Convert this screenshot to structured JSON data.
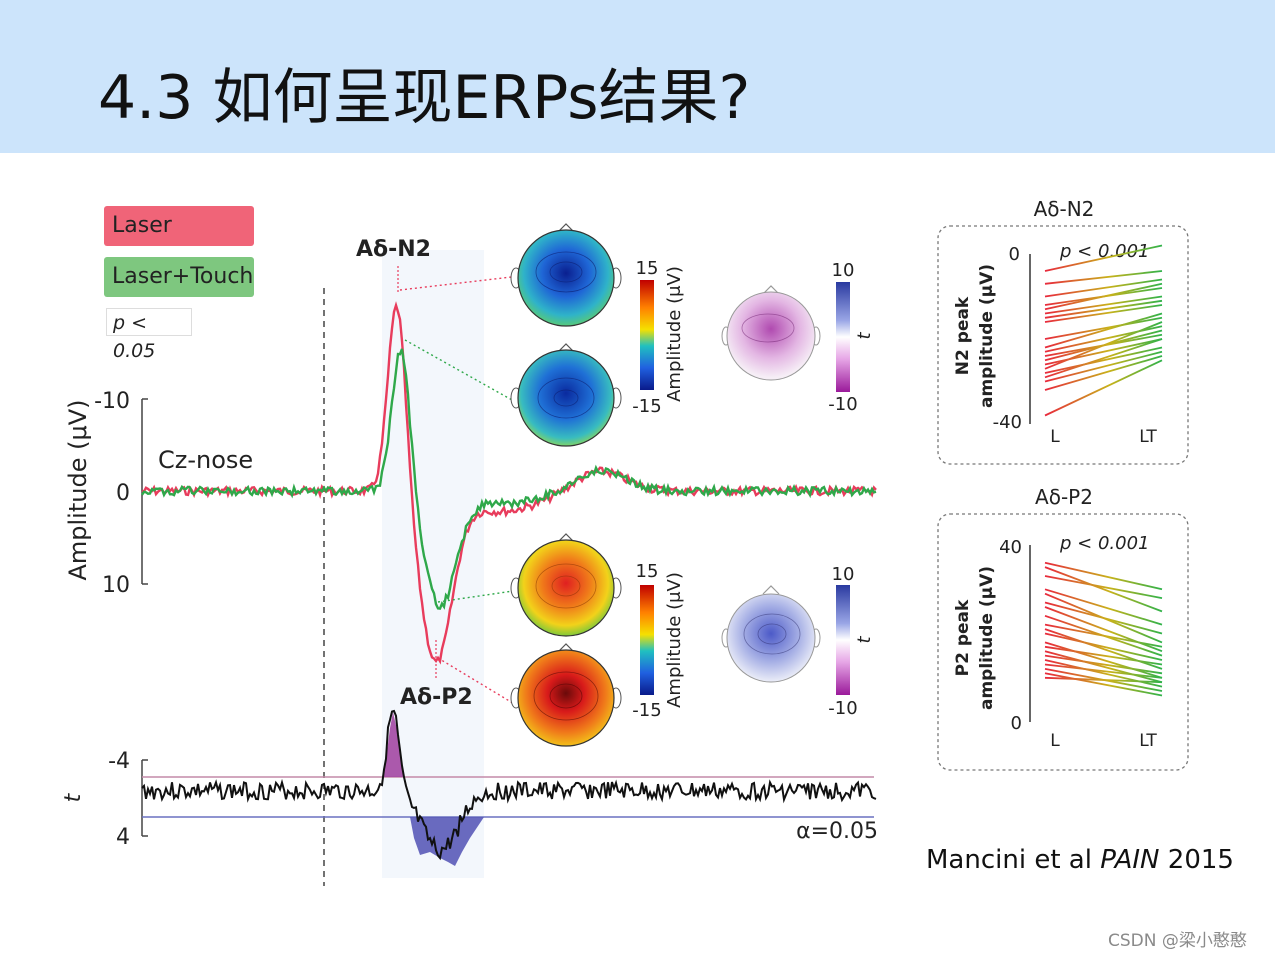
{
  "slide": {
    "title": "4.3 如何呈现ERPs结果?",
    "citation_pre": "Mancini et al ",
    "citation_journal": "PAIN",
    "citation_year": " 2015",
    "watermark": "CSDN @梁小憨憨"
  },
  "legend": {
    "laser": "Laser",
    "laser_touch": "Laser+Touch",
    "pvalue": "p < 0.05",
    "colors": {
      "laser": "#e83c5c",
      "laser_touch": "#2fa84a",
      "laser_box": "#f06478",
      "laser_touch_box": "#7ec77f"
    }
  },
  "colors": {
    "n2_sig": "#a347a3",
    "p2_sig": "#5a5ab8",
    "hot": "#e02020",
    "cold": "#1a4fc4"
  },
  "chart_data": [
    {
      "type": "line",
      "title": "",
      "ylabel": "Amplitude (μV)",
      "trace_label": "Cz-nose",
      "y_ticks": [
        "-10",
        "0",
        "10"
      ],
      "y_axis_inverted": true,
      "peak_labels": [
        "Aδ-N2",
        "Aδ-P2"
      ],
      "series": [
        {
          "name": "Laser",
          "peak_n2": -21,
          "peak_p2": 18
        },
        {
          "name": "Laser+Touch",
          "peak_n2": -16,
          "peak_p2": 12
        }
      ]
    },
    {
      "type": "line",
      "title": "",
      "ylabel": "t",
      "y_ticks": [
        "-4",
        "4"
      ],
      "threshold_label": "α=0.05"
    },
    {
      "type": "heatmap",
      "colorbar_amplitude": {
        "label": "Amplitude (μV)",
        "max": "15",
        "min": "-15"
      },
      "colorbar_t": {
        "label": "t",
        "max": "10",
        "min": "-10"
      }
    },
    {
      "type": "line",
      "title": "Aδ-N2",
      "ylabel": "N2 peak amplitude (μV)",
      "ylabel_line1": "N2 peak",
      "ylabel_line2": "amplitude (μV)",
      "p_text": "p < 0.001",
      "categories": [
        "L",
        "LT"
      ],
      "y_ticks": [
        "0",
        "-40"
      ],
      "ylim": [
        -40,
        0
      ],
      "series": [
        {
          "values": [
            -4,
            2
          ]
        },
        {
          "values": [
            -7,
            -4
          ]
        },
        {
          "values": [
            -10,
            -6
          ]
        },
        {
          "values": [
            -12,
            -8
          ]
        },
        {
          "values": [
            -13,
            -7
          ]
        },
        {
          "values": [
            -14,
            -10
          ]
        },
        {
          "values": [
            -15,
            -11
          ]
        },
        {
          "values": [
            -16,
            -12
          ]
        },
        {
          "values": [
            -20,
            -15
          ]
        },
        {
          "values": [
            -22,
            -14
          ]
        },
        {
          "values": [
            -23,
            -17
          ]
        },
        {
          "values": [
            -24,
            -19
          ]
        },
        {
          "values": [
            -25,
            -18
          ]
        },
        {
          "values": [
            -26,
            -20
          ]
        },
        {
          "values": [
            -27,
            -16
          ]
        },
        {
          "values": [
            -28,
            -22
          ]
        },
        {
          "values": [
            -29,
            -20
          ]
        },
        {
          "values": [
            -30,
            -23
          ]
        },
        {
          "values": [
            -32,
            -24
          ]
        },
        {
          "values": [
            -38,
            -25
          ]
        }
      ]
    },
    {
      "type": "line",
      "title": "Aδ-P2",
      "ylabel": "P2 peak amplitude (μV)",
      "ylabel_line1": "P2 peak",
      "ylabel_line2": "amplitude (μV)",
      "p_text": "p < 0.001",
      "categories": [
        "L",
        "LT"
      ],
      "y_ticks": [
        "40",
        "0"
      ],
      "ylim": [
        0,
        40
      ],
      "series": [
        {
          "values": [
            36,
            30
          ]
        },
        {
          "values": [
            35,
            25
          ]
        },
        {
          "values": [
            33,
            28
          ]
        },
        {
          "values": [
            30,
            22
          ]
        },
        {
          "values": [
            29,
            18
          ]
        },
        {
          "values": [
            27,
            20
          ]
        },
        {
          "values": [
            26,
            16
          ]
        },
        {
          "values": [
            24,
            15
          ]
        },
        {
          "values": [
            22,
            17
          ]
        },
        {
          "values": [
            21,
            12
          ]
        },
        {
          "values": [
            20,
            14
          ]
        },
        {
          "values": [
            18,
            10
          ]
        },
        {
          "values": [
            17,
            13
          ]
        },
        {
          "values": [
            16,
            9
          ]
        },
        {
          "values": [
            15,
            11
          ]
        },
        {
          "values": [
            14,
            8
          ]
        },
        {
          "values": [
            13,
            10
          ]
        },
        {
          "values": [
            12,
            7
          ]
        },
        {
          "values": [
            11,
            6
          ]
        },
        {
          "values": [
            10,
            9
          ]
        }
      ]
    }
  ]
}
